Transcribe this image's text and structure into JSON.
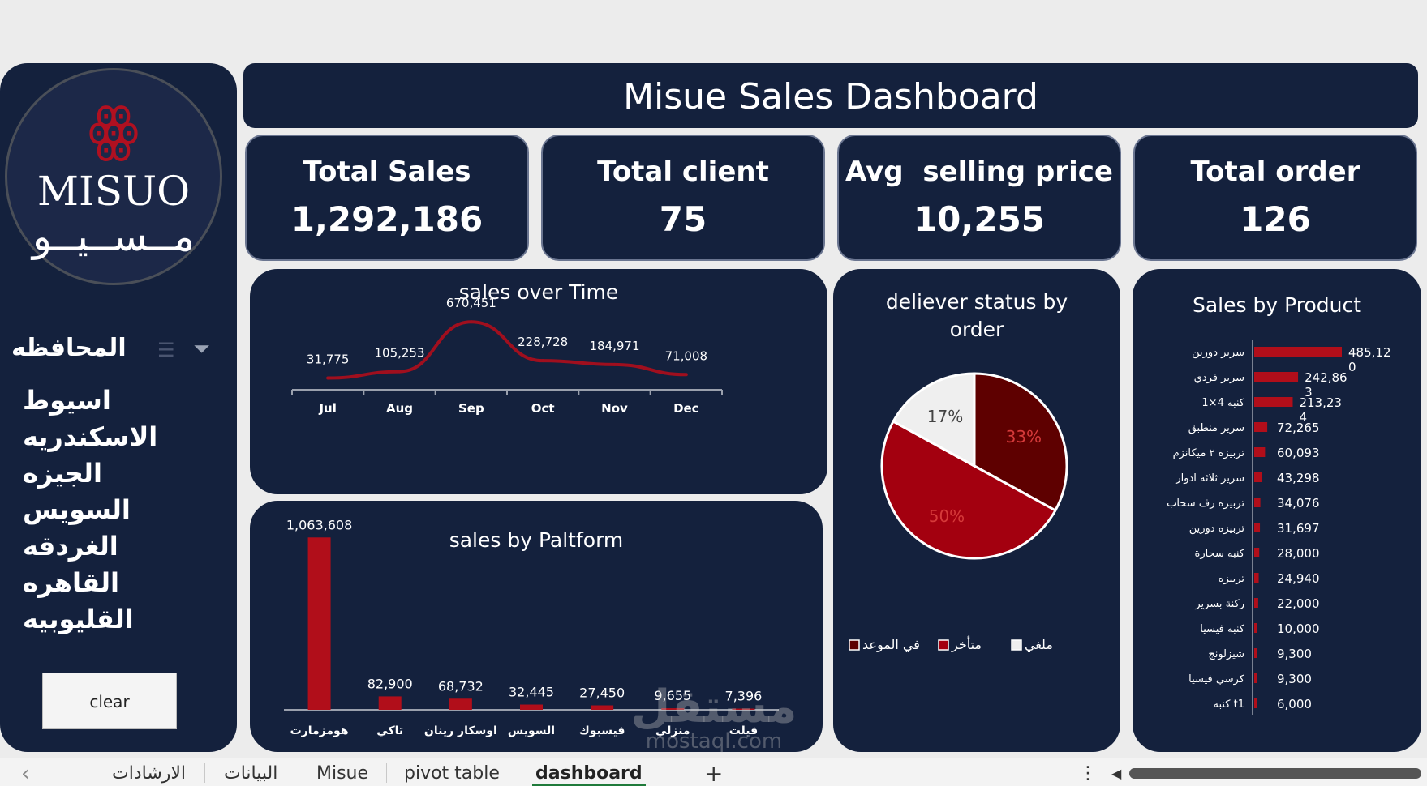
{
  "dashboard": {
    "title": "Misue Sales Dashboard"
  },
  "logo": {
    "latin": "MISUO",
    "arabic": "مــســيــو",
    "mark": "ꙮ"
  },
  "kpis": [
    {
      "label": "Total Sales",
      "value": "1,292,186"
    },
    {
      "label": "Total client",
      "value": "75"
    },
    {
      "label": "Avg  selling price",
      "value": "10,255"
    },
    {
      "label": "Total order",
      "value": "126"
    }
  ],
  "slicer": {
    "title": "المحافظه",
    "items": [
      "اسيوط",
      "الاسكندريه",
      "الجيزه",
      "السويس",
      "الغردقه",
      "القاهره",
      "القليوبيه"
    ],
    "clear_label": "clear",
    "filter_icon": "⏷",
    "multiselect_icon": "☰"
  },
  "charts": {
    "time": {
      "type": "line",
      "title": "sales over Time",
      "categories": [
        "Jul",
        "Aug",
        "Sep",
        "Oct",
        "Nov",
        "Dec"
      ],
      "values": [
        31775,
        105253,
        670451,
        228728,
        184971,
        71008
      ],
      "labels": [
        "31,775",
        "105,253",
        "670,451",
        "228,728",
        "184,971",
        "71,008"
      ],
      "color": "#a00f1e"
    },
    "platform": {
      "type": "bar",
      "title": "sales by Paltform",
      "categories": [
        "هومزمارت",
        "تاكي",
        "اوسكار رينان",
        "السويس",
        "فيسبوك",
        "منزلي",
        "فيلت"
      ],
      "values": [
        1063608,
        82900,
        68732,
        32445,
        27450,
        9655,
        7396
      ],
      "labels": [
        "1,063,608",
        "82,900",
        "68,732",
        "32,445",
        "27,450",
        "9,655",
        "7,396"
      ],
      "color": "#b10e1a"
    },
    "status": {
      "type": "pie",
      "title": "deliever status by order",
      "slices": [
        {
          "name": "في الموعد",
          "value": 33,
          "label": "33%",
          "color": "#5e0000"
        },
        {
          "name": "متأخر",
          "value": 50,
          "label": "50%",
          "color": "#a3000f"
        },
        {
          "name": "ملغي",
          "value": 17,
          "label": "17%",
          "color": "#efefef"
        }
      ]
    },
    "product": {
      "type": "bar",
      "title": "Sales by Product",
      "categories": [
        "سرير دورين",
        "سرير فردي",
        "كنبه 4×1",
        "سرير منطبق",
        "تربيزه ٢ ميكانزم",
        "سرير ثلاثه ادوار",
        "تربيزه رف سحاب",
        "تربيزه دورين",
        "كنبه سحارة",
        "تربيزه",
        "ركنة بسرير",
        "كنبه فيسيا",
        "شيزلونج",
        "كرسي فيسيا",
        "كنبه t1"
      ],
      "values": [
        485120,
        242863,
        213234,
        72265,
        60093,
        43298,
        34076,
        31697,
        28000,
        24940,
        22000,
        10000,
        9300,
        9300,
        6000
      ],
      "labels": [
        "485,12\n0",
        "242,86\n3",
        "213,23\n4",
        "72,265",
        "60,093",
        "43,298",
        "34,076",
        "31,697",
        "28,000",
        "24,940",
        "22,000",
        "10,000",
        "9,300",
        "9,300",
        "6,000"
      ],
      "color": "#b10e1a"
    }
  },
  "chart_data": [
    {
      "type": "line",
      "title": "sales over Time",
      "categories": [
        "Jul",
        "Aug",
        "Sep",
        "Oct",
        "Nov",
        "Dec"
      ],
      "values": [
        31775,
        105253,
        670451,
        228728,
        184971,
        71008
      ]
    },
    {
      "type": "bar",
      "title": "sales by Paltform",
      "categories": [
        "هومزمارت",
        "تاكي",
        "اوسكار رينان",
        "السويس",
        "فيسبوك",
        "منزلي",
        "فيلت"
      ],
      "values": [
        1063608,
        82900,
        68732,
        32445,
        27450,
        9655,
        7396
      ]
    },
    {
      "type": "pie",
      "title": "deliever status by order",
      "categories": [
        "في الموعد",
        "متأخر",
        "ملغي"
      ],
      "values": [
        33,
        50,
        17
      ]
    },
    {
      "type": "bar",
      "title": "Sales by Product",
      "categories": [
        "سرير دورين",
        "سرير فردي",
        "كنبه 4×1",
        "سرير منطبق",
        "تربيزه ٢ ميكانزم",
        "سرير ثلاثه ادوار",
        "تربيزه رف سحاب",
        "تربيزه دورين",
        "كنبه سحارة",
        "تربيزه",
        "ركنة بسرير",
        "كنبه فيسيا",
        "شيزلونج",
        "كرسي فيسيا",
        "كنبه t1"
      ],
      "values": [
        485120,
        242863,
        213234,
        72265,
        60093,
        43298,
        34076,
        31697,
        28000,
        24940,
        22000,
        10000,
        9300,
        9300,
        6000
      ]
    }
  ],
  "tabs": {
    "prev_icon": "‹",
    "items": [
      "الارشادات",
      "البيانات",
      "Misue",
      "pivot table",
      "dashboard"
    ],
    "active": "dashboard",
    "add_icon": "+",
    "more_icon": "⋮",
    "scroll_left_icon": "◀"
  },
  "watermark": {
    "big": "مستقل",
    "small": "mostaql.com"
  }
}
